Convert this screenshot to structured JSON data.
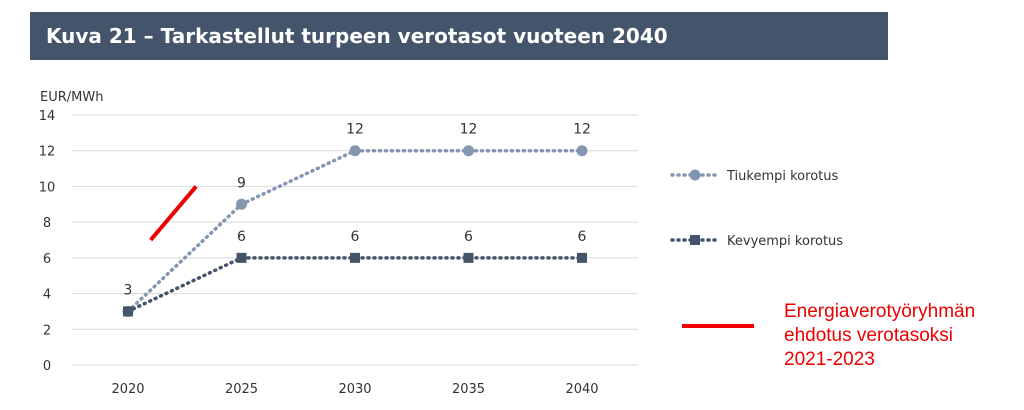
{
  "chart_data": {
    "type": "line",
    "title": "Kuva 21 – Tarkastellut turpeen verotasot vuoteen 2040",
    "ylabel": "EUR/MWh",
    "xlabel": "",
    "ylim": [
      0,
      14
    ],
    "yticks": [
      0,
      2,
      4,
      6,
      8,
      10,
      12,
      14
    ],
    "x": [
      2020,
      2025,
      2030,
      2035,
      2040
    ],
    "grid": true,
    "legend_position": "right",
    "series": [
      {
        "name": "Tiukempi korotus",
        "values": [
          3,
          9,
          12,
          12,
          12
        ],
        "data_labels": [
          "",
          "9",
          "12",
          "12",
          "12"
        ],
        "marker": "circle",
        "color": "#8497b0",
        "line_style": "dotted"
      },
      {
        "name": "Kevyempi korotus",
        "values": [
          3,
          6,
          6,
          6,
          6
        ],
        "data_labels": [
          "3",
          "6",
          "6",
          "6",
          "6"
        ],
        "marker": "square",
        "color": "#44546a",
        "line_style": "dotted"
      }
    ],
    "annotation": {
      "text_lines": [
        "Energiaverotyöryhmän",
        "ehdotus verotasoksi",
        "2021-2023"
      ],
      "color": "#ee0000",
      "segment": {
        "x": [
          2021,
          2023
        ],
        "y": [
          7,
          10
        ]
      }
    }
  }
}
